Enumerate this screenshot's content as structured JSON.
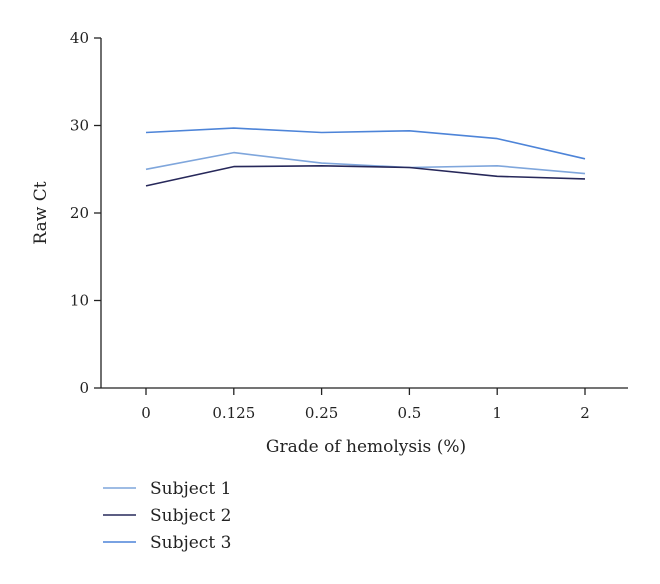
{
  "chart_data": {
    "type": "line",
    "xlabel": "Grade of hemolysis (%)",
    "ylabel": "Raw Ct",
    "categories": [
      "0",
      "0.125",
      "0.25",
      "0.5",
      "1",
      "2"
    ],
    "ylim": [
      0,
      40
    ],
    "yticks": [
      "0",
      "10",
      "20",
      "30",
      "40"
    ],
    "grid": false,
    "legend_position": "bottom-left",
    "series": [
      {
        "name": "Subject 1",
        "color": "#7fa6dc",
        "values": [
          25.0,
          26.9,
          25.7,
          25.2,
          25.4,
          24.5
        ]
      },
      {
        "name": "Subject 2",
        "color": "#27285a",
        "values": [
          23.1,
          25.3,
          25.4,
          25.2,
          24.2,
          23.9
        ]
      },
      {
        "name": "Subject 3",
        "color": "#4d84d8",
        "values": [
          29.2,
          29.7,
          29.2,
          29.4,
          28.5,
          26.2
        ]
      }
    ]
  }
}
